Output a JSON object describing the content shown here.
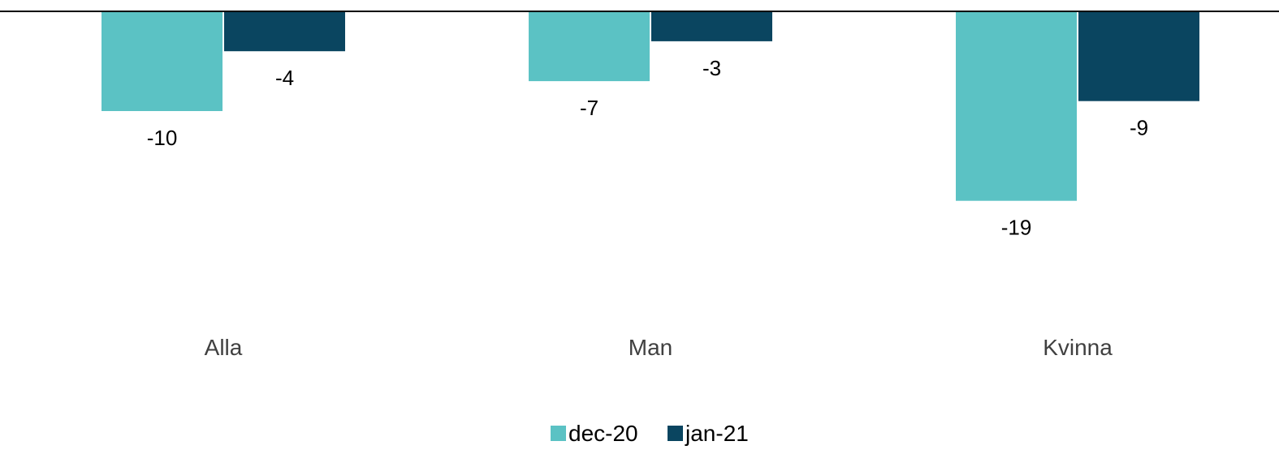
{
  "chart_data": {
    "type": "bar",
    "categories": [
      "Alla",
      "Man",
      "Kvinna"
    ],
    "series": [
      {
        "name": "dec-20",
        "values": [
          -10,
          -7,
          -19
        ],
        "color": "#5BC2C4"
      },
      {
        "name": "jan-21",
        "values": [
          -4,
          -3,
          -9
        ],
        "color": "#0A4560"
      }
    ],
    "data_labels": [
      [
        "-10",
        "-7",
        "-19"
      ],
      [
        "-4",
        "-3",
        "-9"
      ]
    ],
    "ylim": [
      -30,
      0
    ],
    "grid": false,
    "legend_position": "bottom",
    "axis_color": "#000000",
    "category_label_color": "#404040"
  }
}
